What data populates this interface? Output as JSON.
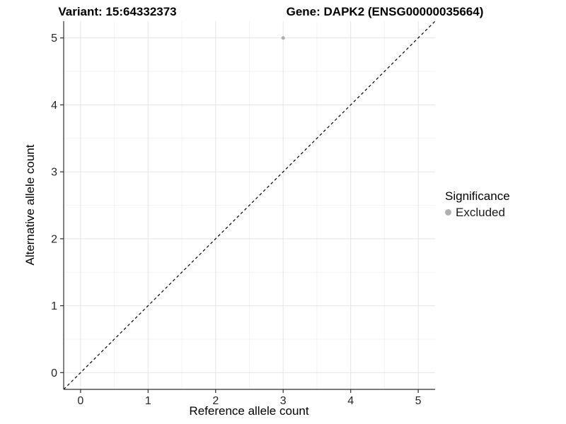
{
  "chart_data": {
    "type": "scatter",
    "titles": {
      "variant": "Variant: 15:64332373",
      "gene": "Gene: DAPK2 (ENSG00000035664)"
    },
    "xlabel": "Reference allele count",
    "ylabel": "Alternative allele count",
    "xlim": [
      -0.25,
      5.25
    ],
    "ylim": [
      -0.25,
      5.25
    ],
    "x_ticks": [
      0,
      1,
      2,
      3,
      4,
      5
    ],
    "y_ticks": [
      0,
      1,
      2,
      3,
      4,
      5
    ],
    "x_minor_ticks": [
      0.5,
      1.5,
      2.5,
      3.5,
      4.5
    ],
    "y_minor_ticks": [
      0.5,
      1.5,
      2.5,
      3.5,
      4.5
    ],
    "grid": "on",
    "legend_position": "right",
    "legend": {
      "title": "Significance",
      "items": [
        {
          "label": "Excluded",
          "color": "#b0b0b0",
          "marker": "circle"
        }
      ]
    },
    "points": [
      {
        "x": 3,
        "y": 5,
        "series": "Excluded",
        "color": "#b0b0b0"
      }
    ],
    "reference_line": {
      "kind": "y=x",
      "from": [
        -0.25,
        -0.25
      ],
      "to": [
        5.25,
        5.25
      ],
      "style": "dashed",
      "color": "#000000"
    }
  },
  "colors": {
    "excluded_point": "#b0b0b0",
    "grid_major": "#e4e4e4",
    "grid_minor": "#f3f3f3",
    "axis_line": "#2e2e2e",
    "reference_line": "#000000",
    "background": "#ffffff"
  }
}
